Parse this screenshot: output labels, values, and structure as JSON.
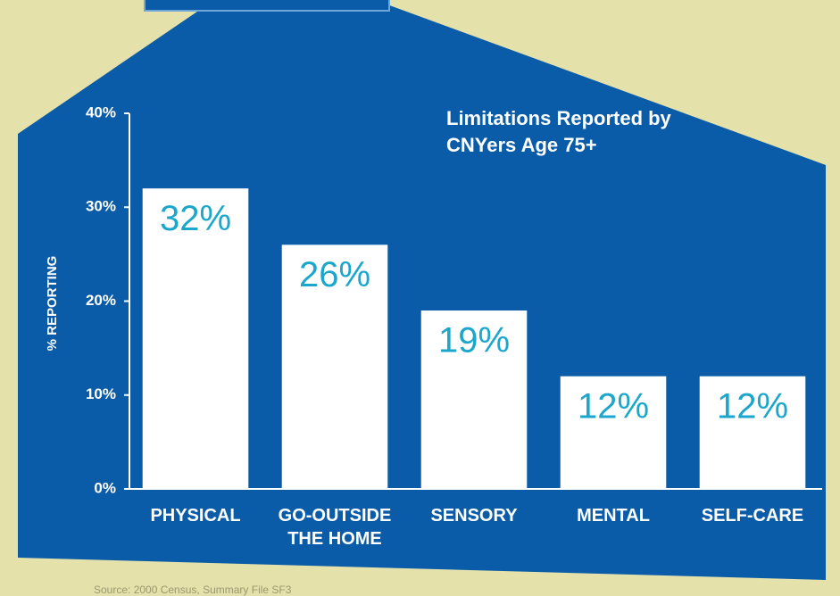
{
  "chart_data": {
    "type": "bar",
    "title": "Limitations Reported by CNYers Age 75+",
    "y_label": "% REPORTING",
    "source": "Source: 2000 Census, Summary File SF3",
    "categories": [
      "PHYSICAL",
      "GO-OUTSIDE THE HOME",
      "SENSORY",
      "MENTAL",
      "SELF-CARE"
    ],
    "values": [
      32,
      26,
      19,
      12,
      12
    ],
    "value_labels": [
      "32%",
      "26%",
      "19%",
      "12%",
      "12%"
    ],
    "color": "#ffffff",
    "label_color": "#1ba6cc",
    "ylim": [
      0,
      40
    ],
    "yticks": [
      {
        "value": 0,
        "label": "0%"
      },
      {
        "value": 10,
        "label": "10%"
      },
      {
        "value": 20,
        "label": "20%"
      },
      {
        "value": 30,
        "label": "30%"
      },
      {
        "value": 40,
        "label": "40%"
      }
    ],
    "grid": false
  }
}
